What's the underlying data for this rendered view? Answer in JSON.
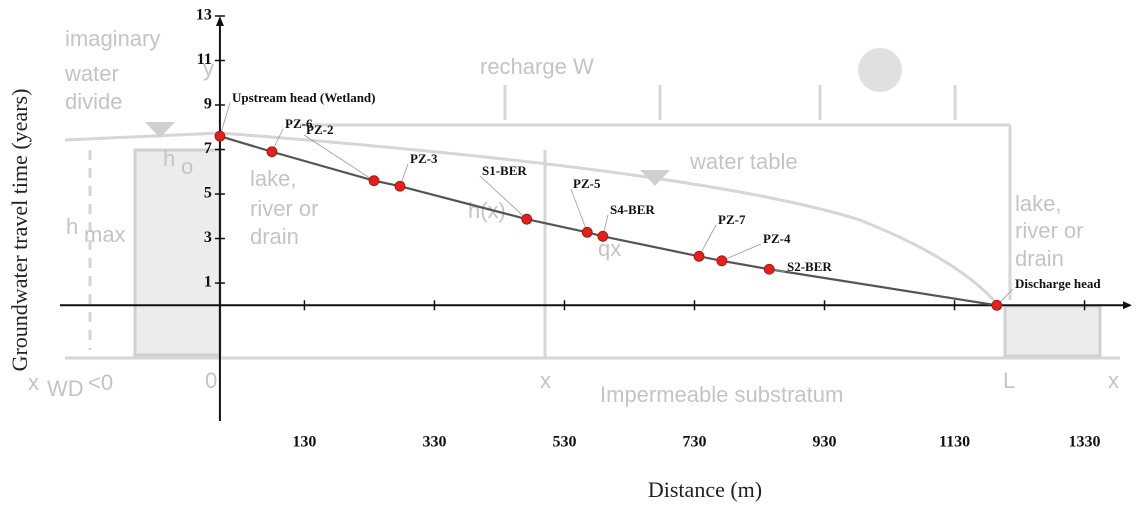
{
  "chart_data": {
    "type": "line",
    "x_label": "Distance (m)",
    "y_label": "Groundwater travel time (years)",
    "x": [
      0,
      80,
      237,
      277,
      472,
      565,
      589,
      737,
      772,
      845,
      1195
    ],
    "values": [
      7.6,
      6.9,
      5.6,
      5.35,
      3.87,
      3.28,
      3.1,
      2.2,
      2.0,
      1.62,
      0
    ],
    "point_labels": [
      "Upstream head (Wetland)",
      "PZ-6",
      "PZ-2",
      "PZ-3",
      "S1-BER",
      "PZ-5",
      "S4-BER",
      "PZ-7",
      "PZ-4",
      "S2-BER",
      "Discharge head"
    ],
    "color": "#555555",
    "marker_color": "#e3211c",
    "xlim": [
      -246,
      1403
    ],
    "ylim": [
      -5.2,
      13
    ],
    "xticks": [
      130,
      330,
      530,
      730,
      930,
      1130,
      1330
    ],
    "yticks": [
      1,
      3,
      5,
      7,
      9,
      11,
      13
    ],
    "grid": false,
    "diagram_labels": [
      "imaginary",
      "water",
      "divide",
      "recharge W",
      "water table",
      "lake,",
      "river or",
      "drain",
      "lake,",
      "river or",
      "drain",
      "h(x)",
      "qx",
      "Impermeable substratum",
      "x",
      "WD",
      "<0",
      "0",
      "x",
      "L",
      "x",
      "h",
      "max",
      "h",
      "o",
      "y"
    ]
  }
}
